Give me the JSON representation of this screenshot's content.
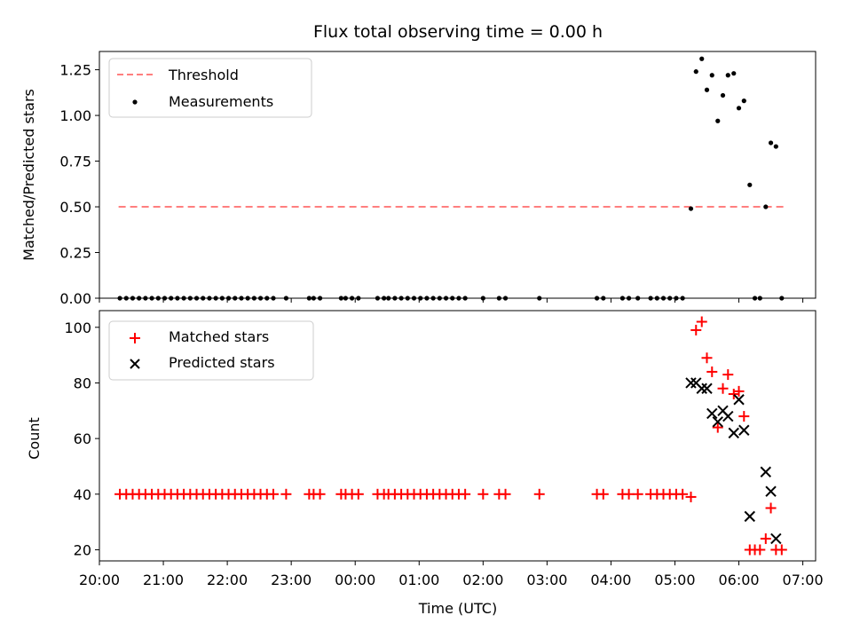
{
  "chart_data": [
    {
      "type": "scatter",
      "title": "Flux total observing time = 0.00 h",
      "ylabel": "Matched/Predicted stars",
      "xlim": [
        20.0,
        31.2
      ],
      "ylim": [
        0.0,
        1.35
      ],
      "yticks": [
        0.0,
        0.25,
        0.5,
        0.75,
        1.0,
        1.25
      ],
      "ytick_labels": [
        "0.00",
        "0.25",
        "0.50",
        "0.75",
        "1.00",
        "1.25"
      ],
      "legend": "upper-left",
      "grid": false,
      "threshold": {
        "name": "Threshold",
        "value": 0.5,
        "x_range": [
          20.3,
          30.7
        ],
        "color": "#ff7f7f",
        "style": "dashed"
      },
      "series": [
        {
          "name": "Measurements",
          "marker": "dot",
          "color": "#000000",
          "x": [
            20.32,
            20.42,
            20.52,
            20.62,
            20.72,
            20.82,
            20.92,
            21.02,
            21.12,
            21.22,
            21.32,
            21.42,
            21.52,
            21.62,
            21.72,
            21.82,
            21.92,
            22.02,
            22.12,
            22.22,
            22.32,
            22.42,
            22.52,
            22.62,
            22.72,
            22.92,
            23.28,
            23.35,
            23.45,
            23.78,
            23.85,
            23.95,
            24.05,
            24.35,
            24.45,
            24.52,
            24.62,
            24.72,
            24.82,
            24.92,
            25.02,
            25.12,
            25.22,
            25.32,
            25.42,
            25.52,
            25.62,
            25.72,
            26.0,
            26.25,
            26.35,
            26.88,
            27.78,
            27.88,
            28.18,
            28.28,
            28.42,
            28.62,
            28.72,
            28.82,
            28.92,
            29.02,
            29.12,
            29.25,
            29.33,
            29.42,
            29.5,
            29.58,
            29.67,
            29.75,
            29.83,
            29.92,
            30.0,
            30.08,
            30.17,
            30.25,
            30.33,
            30.42,
            30.5,
            30.58,
            30.67
          ],
          "y": [
            0,
            0,
            0,
            0,
            0,
            0,
            0,
            0,
            0,
            0,
            0,
            0,
            0,
            0,
            0,
            0,
            0,
            0,
            0,
            0,
            0,
            0,
            0,
            0,
            0,
            0,
            0,
            0,
            0,
            0,
            0,
            0,
            0,
            0,
            0,
            0,
            0,
            0,
            0,
            0,
            0,
            0,
            0,
            0,
            0,
            0,
            0,
            0,
            0,
            0,
            0,
            0,
            0,
            0,
            0,
            0,
            0,
            0,
            0,
            0,
            0,
            0,
            0,
            0.49,
            1.24,
            1.31,
            1.14,
            1.22,
            0.97,
            1.11,
            1.22,
            1.23,
            1.04,
            1.08,
            0.62,
            0,
            0,
            0.5,
            0.85,
            0.83,
            0
          ]
        }
      ]
    },
    {
      "type": "scatter",
      "xlabel": "Time (UTC)",
      "ylabel": "Count",
      "xlim": [
        20.0,
        31.2
      ],
      "ylim": [
        16,
        106
      ],
      "xticks": [
        20,
        21,
        22,
        23,
        24,
        25,
        26,
        27,
        28,
        29,
        30,
        31
      ],
      "xtick_labels": [
        "20:00",
        "21:00",
        "22:00",
        "23:00",
        "00:00",
        "01:00",
        "02:00",
        "03:00",
        "04:00",
        "05:00",
        "06:00",
        "07:00"
      ],
      "yticks": [
        20,
        40,
        60,
        80,
        100
      ],
      "ytick_labels": [
        "20",
        "40",
        "60",
        "80",
        "100"
      ],
      "legend": "upper-left",
      "grid": false,
      "series": [
        {
          "name": "Matched stars",
          "marker": "plus",
          "color": "#ff0000",
          "x": [
            20.32,
            20.42,
            20.52,
            20.62,
            20.72,
            20.82,
            20.92,
            21.02,
            21.12,
            21.22,
            21.32,
            21.42,
            21.52,
            21.62,
            21.72,
            21.82,
            21.92,
            22.02,
            22.12,
            22.22,
            22.32,
            22.42,
            22.52,
            22.62,
            22.72,
            22.92,
            23.28,
            23.35,
            23.45,
            23.78,
            23.85,
            23.95,
            24.05,
            24.35,
            24.45,
            24.52,
            24.62,
            24.72,
            24.82,
            24.92,
            25.02,
            25.12,
            25.22,
            25.32,
            25.42,
            25.52,
            25.62,
            25.72,
            26.0,
            26.25,
            26.35,
            26.88,
            27.78,
            27.88,
            28.18,
            28.28,
            28.42,
            28.62,
            28.72,
            28.82,
            28.92,
            29.02,
            29.12,
            29.25,
            29.33,
            29.42,
            29.5,
            29.58,
            29.67,
            29.75,
            29.83,
            29.92,
            30.0,
            30.08,
            30.17,
            30.25,
            30.33,
            30.42,
            30.5,
            30.58,
            30.67
          ],
          "y": [
            40,
            40,
            40,
            40,
            40,
            40,
            40,
            40,
            40,
            40,
            40,
            40,
            40,
            40,
            40,
            40,
            40,
            40,
            40,
            40,
            40,
            40,
            40,
            40,
            40,
            40,
            40,
            40,
            40,
            40,
            40,
            40,
            40,
            40,
            40,
            40,
            40,
            40,
            40,
            40,
            40,
            40,
            40,
            40,
            40,
            40,
            40,
            40,
            40,
            40,
            40,
            40,
            40,
            40,
            40,
            40,
            40,
            40,
            40,
            40,
            40,
            40,
            40,
            39,
            99,
            102,
            89,
            84,
            64,
            78,
            83,
            76,
            77,
            68,
            20,
            20,
            20,
            24,
            35,
            20,
            20
          ]
        },
        {
          "name": "Predicted stars",
          "marker": "x",
          "color": "#000000",
          "x": [
            29.25,
            29.33,
            29.42,
            29.5,
            29.58,
            29.67,
            29.75,
            29.83,
            29.92,
            30.0,
            30.08,
            30.17,
            30.42,
            30.5,
            30.58
          ],
          "y": [
            80,
            80,
            78,
            78,
            69,
            66,
            70,
            68,
            62,
            74,
            63,
            32,
            48,
            41,
            24
          ]
        }
      ]
    }
  ]
}
